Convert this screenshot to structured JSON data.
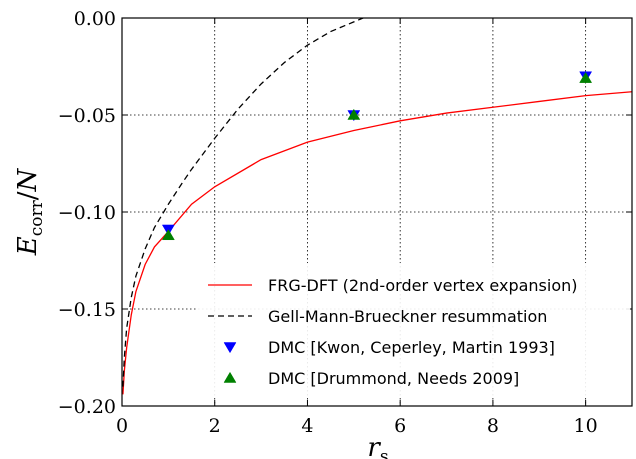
{
  "chart_data": {
    "type": "line",
    "xlabel": "r_s",
    "ylabel": "E_corr / N",
    "xlim": [
      0,
      11
    ],
    "ylim": [
      -0.2,
      0.0
    ],
    "xticks": [
      0,
      2,
      4,
      6,
      8,
      10
    ],
    "xtick_labels": [
      "0",
      "2",
      "4",
      "6",
      "8",
      "10"
    ],
    "yticks": [
      0.0,
      -0.05,
      -0.1,
      -0.15,
      -0.2
    ],
    "ytick_labels": [
      "0.00",
      "−0.05",
      "−0.10",
      "−0.15",
      "−0.20"
    ],
    "grid": true,
    "legend_position": "lower-right",
    "series": [
      {
        "name": "FRG-DFT (2nd-order vertex expansion)",
        "style": "solid",
        "color": "#ff0000",
        "x": [
          0.02,
          0.05,
          0.1,
          0.2,
          0.3,
          0.5,
          0.7,
          1.0,
          1.5,
          2.0,
          3.0,
          4.0,
          5.0,
          6.0,
          7.0,
          8.0,
          9.0,
          10.0,
          11.0
        ],
        "y": [
          -0.194,
          -0.182,
          -0.17,
          -0.153,
          -0.141,
          -0.127,
          -0.118,
          -0.11,
          -0.096,
          -0.087,
          -0.073,
          -0.064,
          -0.058,
          -0.053,
          -0.049,
          -0.046,
          -0.043,
          -0.04,
          -0.038
        ]
      },
      {
        "name": "Gell-Mann-Brueckner resummation",
        "style": "dashed",
        "color": "#000000",
        "x": [
          0.02,
          0.05,
          0.1,
          0.2,
          0.3,
          0.5,
          0.7,
          1.0,
          1.3,
          1.5,
          2.0,
          2.5,
          3.0,
          3.5,
          4.0,
          4.5,
          5.0,
          5.2
        ],
        "y": [
          -0.19,
          -0.175,
          -0.16,
          -0.144,
          -0.133,
          -0.119,
          -0.108,
          -0.096,
          -0.085,
          -0.078,
          -0.062,
          -0.047,
          -0.034,
          -0.023,
          -0.014,
          -0.007,
          -0.002,
          0.0
        ]
      },
      {
        "name": "DMC [Kwon, Ceperley, Martin 1993]",
        "style": "marker",
        "marker": "triangle-down",
        "color": "#0000ff",
        "x": [
          1,
          5,
          10
        ],
        "y": [
          -0.109,
          -0.05,
          -0.03
        ]
      },
      {
        "name": "DMC [Drummond, Needs 2009]",
        "style": "marker",
        "marker": "triangle-up",
        "color": "#008000",
        "x": [
          1,
          5,
          10
        ],
        "y": [
          -0.112,
          -0.05,
          -0.031
        ]
      }
    ]
  }
}
